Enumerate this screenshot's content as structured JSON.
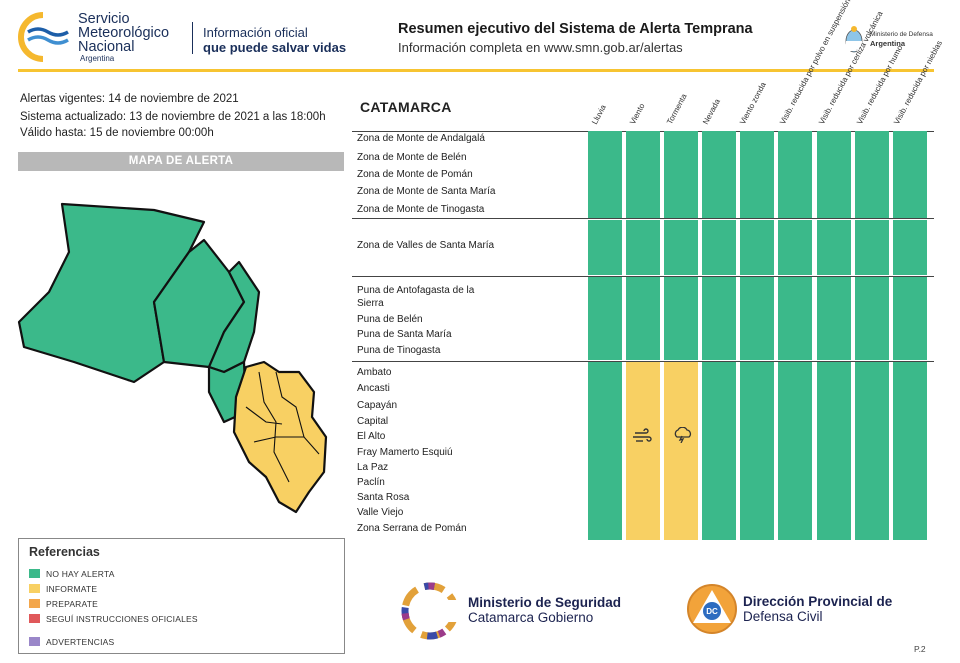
{
  "header": {
    "org_line1": "Servicio",
    "org_line2": "Meteorológico",
    "org_line3": "Nacional",
    "org_country": "Argentina",
    "tagline_1": "Información oficial",
    "tagline_2": "que puede salvar vidas",
    "title": "Resumen ejecutivo del Sistema de Alerta Temprana",
    "subtitle": "Información completa en www.smn.gob.ar/alertas",
    "ministry_line1": "Ministerio de Defensa",
    "ministry_line2": "Argentina"
  },
  "info": {
    "vigentes": "Alertas vigentes: 14 de noviembre de 2021",
    "actualizado": "Sistema actualizado: 13 de noviembre de 2021 a las 18:00h",
    "valido": "Válido hasta: 15 de noviembre 00:00h",
    "map_title": "MAPA DE ALERTA"
  },
  "references": {
    "title": "Referencias",
    "items": [
      {
        "label": "NO HAY ALERTA",
        "color": "#3bb98a"
      },
      {
        "label": "INFORMATE",
        "color": "#f8d063"
      },
      {
        "label": "PREPARATE",
        "color": "#f3a64b"
      },
      {
        "label": "SEGUÍ INSTRUCCIONES OFICIALES",
        "color": "#e0585a"
      },
      {
        "label": "ADVERTENCIAS",
        "color": "#9a87c9"
      }
    ]
  },
  "table": {
    "province": "CATAMARCA",
    "columns": [
      "Lluvia",
      "Viento",
      "Tormenta",
      "Nevada",
      "Viento zonda",
      "Visib. reducida por polvo en suspensión",
      "Visib. reducida por ceniza volcánica",
      "Visib. reducida por humo",
      "Visib. reducida por nieblas"
    ],
    "groups": [
      {
        "zones": [
          "Zona de Monte de Andalgalá",
          "Zona de Monte de Belén",
          "Zona de Monte de Pomán",
          "Zona de Monte de Santa María",
          "Zona de Monte de Tinogasta"
        ]
      },
      {
        "zones": [
          "Zona de Valles de Santa María"
        ]
      },
      {
        "zones": [
          "Puna de Antofagasta de la",
          "Sierra",
          "Puna de Belén",
          "Puna de Santa María",
          "Puna de Tinogasta"
        ]
      },
      {
        "zones": [
          "Ambato",
          "Ancasti",
          "Capayán",
          "Capital",
          "El Alto",
          "Fray Mamerto Esquiú",
          "La Paz",
          "Paclín",
          "Santa Rosa",
          "Valle Viejo",
          "Zona Serrana de Pomán"
        ]
      }
    ],
    "colors": {
      "green": "#3bb98a",
      "yellow": "#f8d063"
    },
    "alerts": [
      [
        "green",
        "green",
        "green",
        "green",
        "green",
        "green",
        "green",
        "green",
        "green"
      ],
      [
        "green",
        "green",
        "green",
        "green",
        "green",
        "green",
        "green",
        "green",
        "green"
      ],
      [
        "green",
        "green",
        "green",
        "green",
        "green",
        "green",
        "green",
        "green",
        "green"
      ],
      [
        "green",
        "yellow",
        "yellow",
        "green",
        "green",
        "green",
        "green",
        "green",
        "green"
      ]
    ],
    "icons": {
      "wind": "wind-icon",
      "storm": "storm-cloud-icon"
    }
  },
  "footer": {
    "ms_line1": "Ministerio de Seguridad",
    "ms_line2": "Catamarca Gobierno",
    "dc_line1": "Dirección Provincial de",
    "dc_line2": "Defensa Civil",
    "dc_badge": "DC",
    "page": "P.2"
  },
  "map": {
    "green": "#3bb98a",
    "yellow": "#f8d063"
  }
}
